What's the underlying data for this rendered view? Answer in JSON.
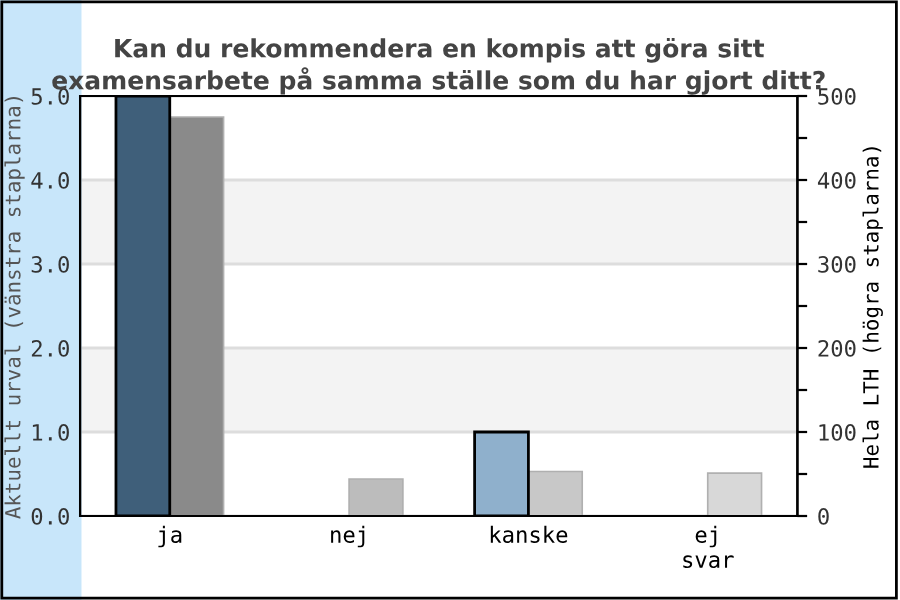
{
  "chart_data": {
    "type": "bar",
    "title": "Kan du rekommendera en kompis att göra sitt examensarbete på samma ställe som du har gjort ditt?",
    "categories": [
      "ja",
      "nej",
      "kanske",
      "ej\nsvar"
    ],
    "series": [
      {
        "colors": [
          "#3f5f7a",
          "#3f5f7a",
          "#8fb0cc",
          "#8fb0cc"
        ],
        "values": [
          5,
          0,
          1,
          0
        ]
      },
      {
        "axis": "y2",
        "colors": [
          "#8a8a8a",
          "#bcbcbc",
          "#c8c8c8",
          "#d8d8d8"
        ],
        "values": [
          475,
          44,
          53,
          51
        ]
      }
    ],
    "ylabel": "Aktuellt urval (vänstra staplarna)",
    "y2label": "Hela LTH (högra staplarna)",
    "ylim": [
      0,
      5
    ],
    "yticks": [
      {
        "value": 0,
        "label": "0.0"
      },
      {
        "value": 1,
        "label": "1.0"
      },
      {
        "value": 2,
        "label": "2.0"
      },
      {
        "value": 3,
        "label": "3.0"
      },
      {
        "value": 4,
        "label": "4.0"
      },
      {
        "value": 5,
        "label": "5.0"
      }
    ],
    "y2lim": [
      0,
      500
    ],
    "y2ticks": [
      0,
      {
        "value": 50,
        "label": null
      },
      100,
      {
        "value": 150,
        "label": null
      },
      200,
      {
        "value": 250,
        "label": null
      },
      300,
      {
        "value": 350,
        "label": null
      },
      400,
      {
        "value": 450,
        "label": null
      },
      500
    ],
    "bands": [
      {
        "axis": "y",
        "from": 1,
        "to": 2,
        "color": "#f3f3f3"
      },
      {
        "axis": "y",
        "from": 3,
        "to": 4,
        "color": "#f3f3f3"
      }
    ],
    "grid": "y",
    "legend": false
  }
}
